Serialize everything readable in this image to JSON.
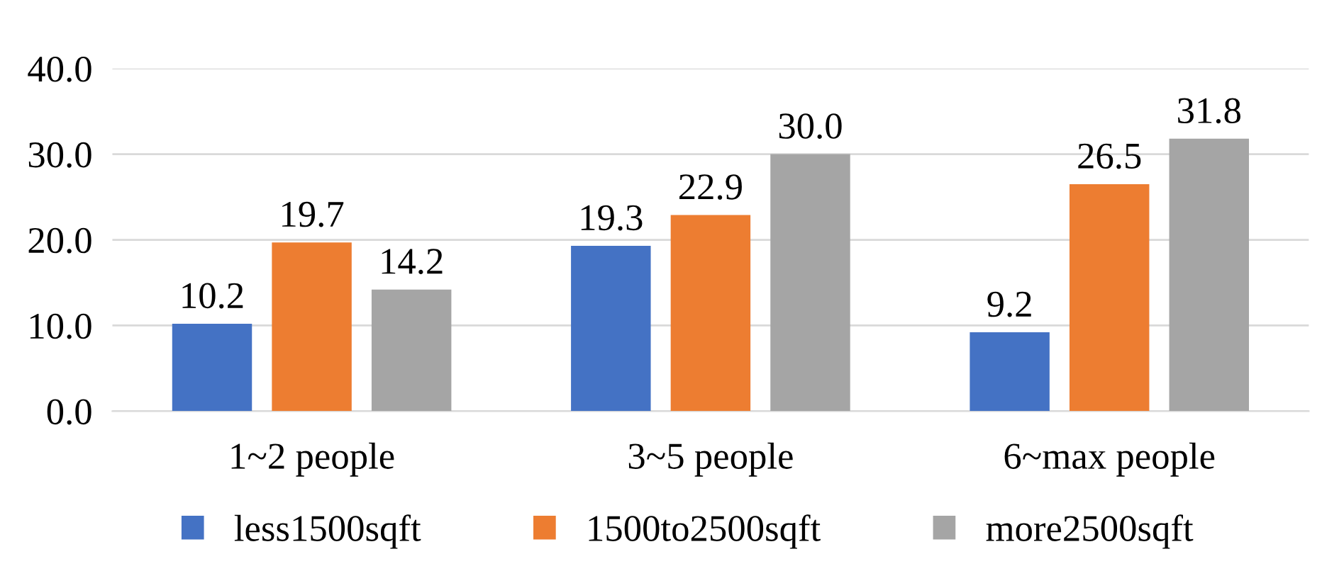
{
  "chart_data": {
    "type": "bar",
    "categories": [
      "1~2 people",
      "3~5 people",
      "6~max people"
    ],
    "series": [
      {
        "name": "less1500sqft",
        "color": "#4472c4",
        "values": [
          10.2,
          19.3,
          9.2
        ],
        "value_labels": [
          "10.2",
          "19.3",
          "9.2"
        ]
      },
      {
        "name": "1500to2500sqft",
        "color": "#ed7d31",
        "values": [
          19.7,
          22.9,
          26.5
        ],
        "value_labels": [
          "19.7",
          "22.9",
          "26.5"
        ]
      },
      {
        "name": "more2500sqft",
        "color": "#a5a5a5",
        "values": [
          14.2,
          30.0,
          31.8
        ],
        "value_labels": [
          "14.2",
          "30.0",
          "31.8"
        ]
      }
    ],
    "ylim": [
      0,
      40
    ],
    "yticks": [
      {
        "value": 0,
        "label": "0.0"
      },
      {
        "value": 10,
        "label": "10.0"
      },
      {
        "value": 20,
        "label": "20.0"
      },
      {
        "value": 30,
        "label": "30.0"
      },
      {
        "value": 40,
        "label": "40.0"
      }
    ],
    "grid": "y",
    "legend": "bottom"
  }
}
